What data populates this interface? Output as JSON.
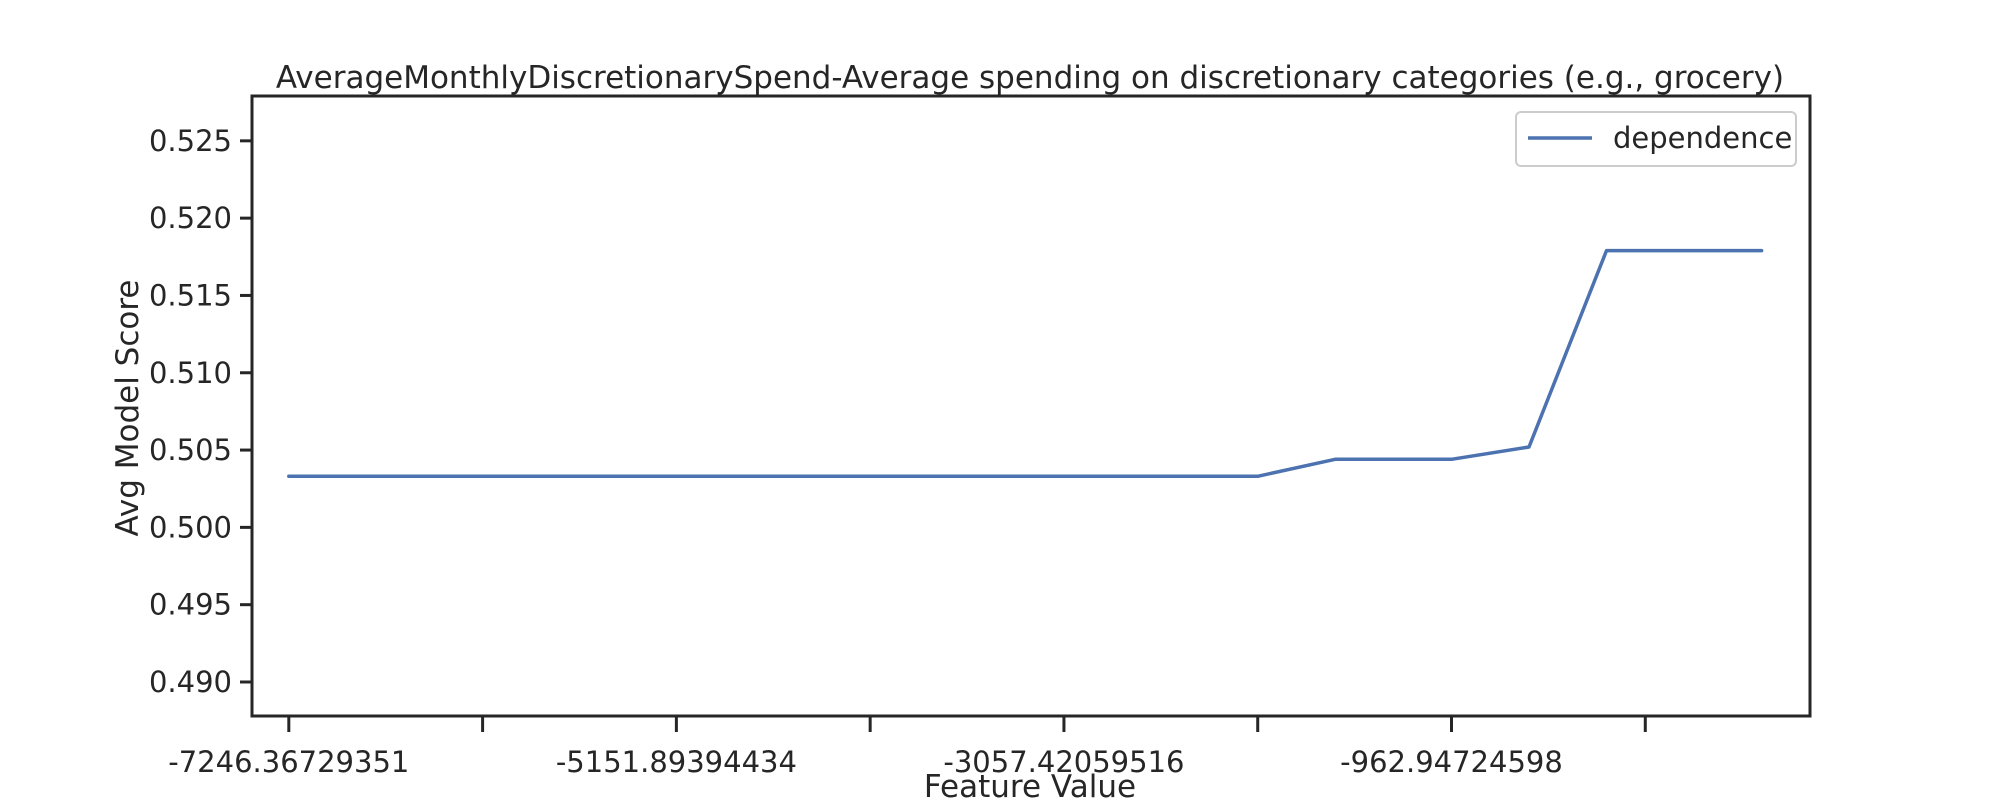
{
  "chart_data": {
    "type": "line",
    "title": "AverageMonthlyDiscretionarySpend-Average spending on discretionary categories (e.g., grocery)",
    "xlabel": "Feature Value",
    "ylabel": "Avg Model Score",
    "grid": false,
    "legend_position": "top-right",
    "colors": {
      "line": "#4c72b0",
      "axes": "#262626",
      "legend_border": "#cccccc"
    },
    "x_tick_labels": [
      "-7246.36729351",
      "-5151.89394434",
      "-3057.42059516",
      "-962.94724598"
    ],
    "x_ticks_labeled_index": [
      0,
      2,
      4,
      6
    ],
    "x_ticks_count": 8,
    "x_range_index": [
      -0.19,
      7.85
    ],
    "ylim": [
      0.4878,
      0.5279
    ],
    "y_ticks": [
      "0.490",
      "0.495",
      "0.500",
      "0.505",
      "0.510",
      "0.515",
      "0.520",
      "0.525"
    ],
    "series": [
      {
        "name": "dependence",
        "x_index": [
          0,
          1,
          2,
          3,
          4,
          5,
          5.4,
          6,
          6.4,
          6.8,
          7.6
        ],
        "values": [
          0.5033,
          0.5033,
          0.5033,
          0.5033,
          0.5033,
          0.5033,
          0.5044,
          0.5044,
          0.5052,
          0.5179,
          0.5179
        ]
      }
    ]
  }
}
